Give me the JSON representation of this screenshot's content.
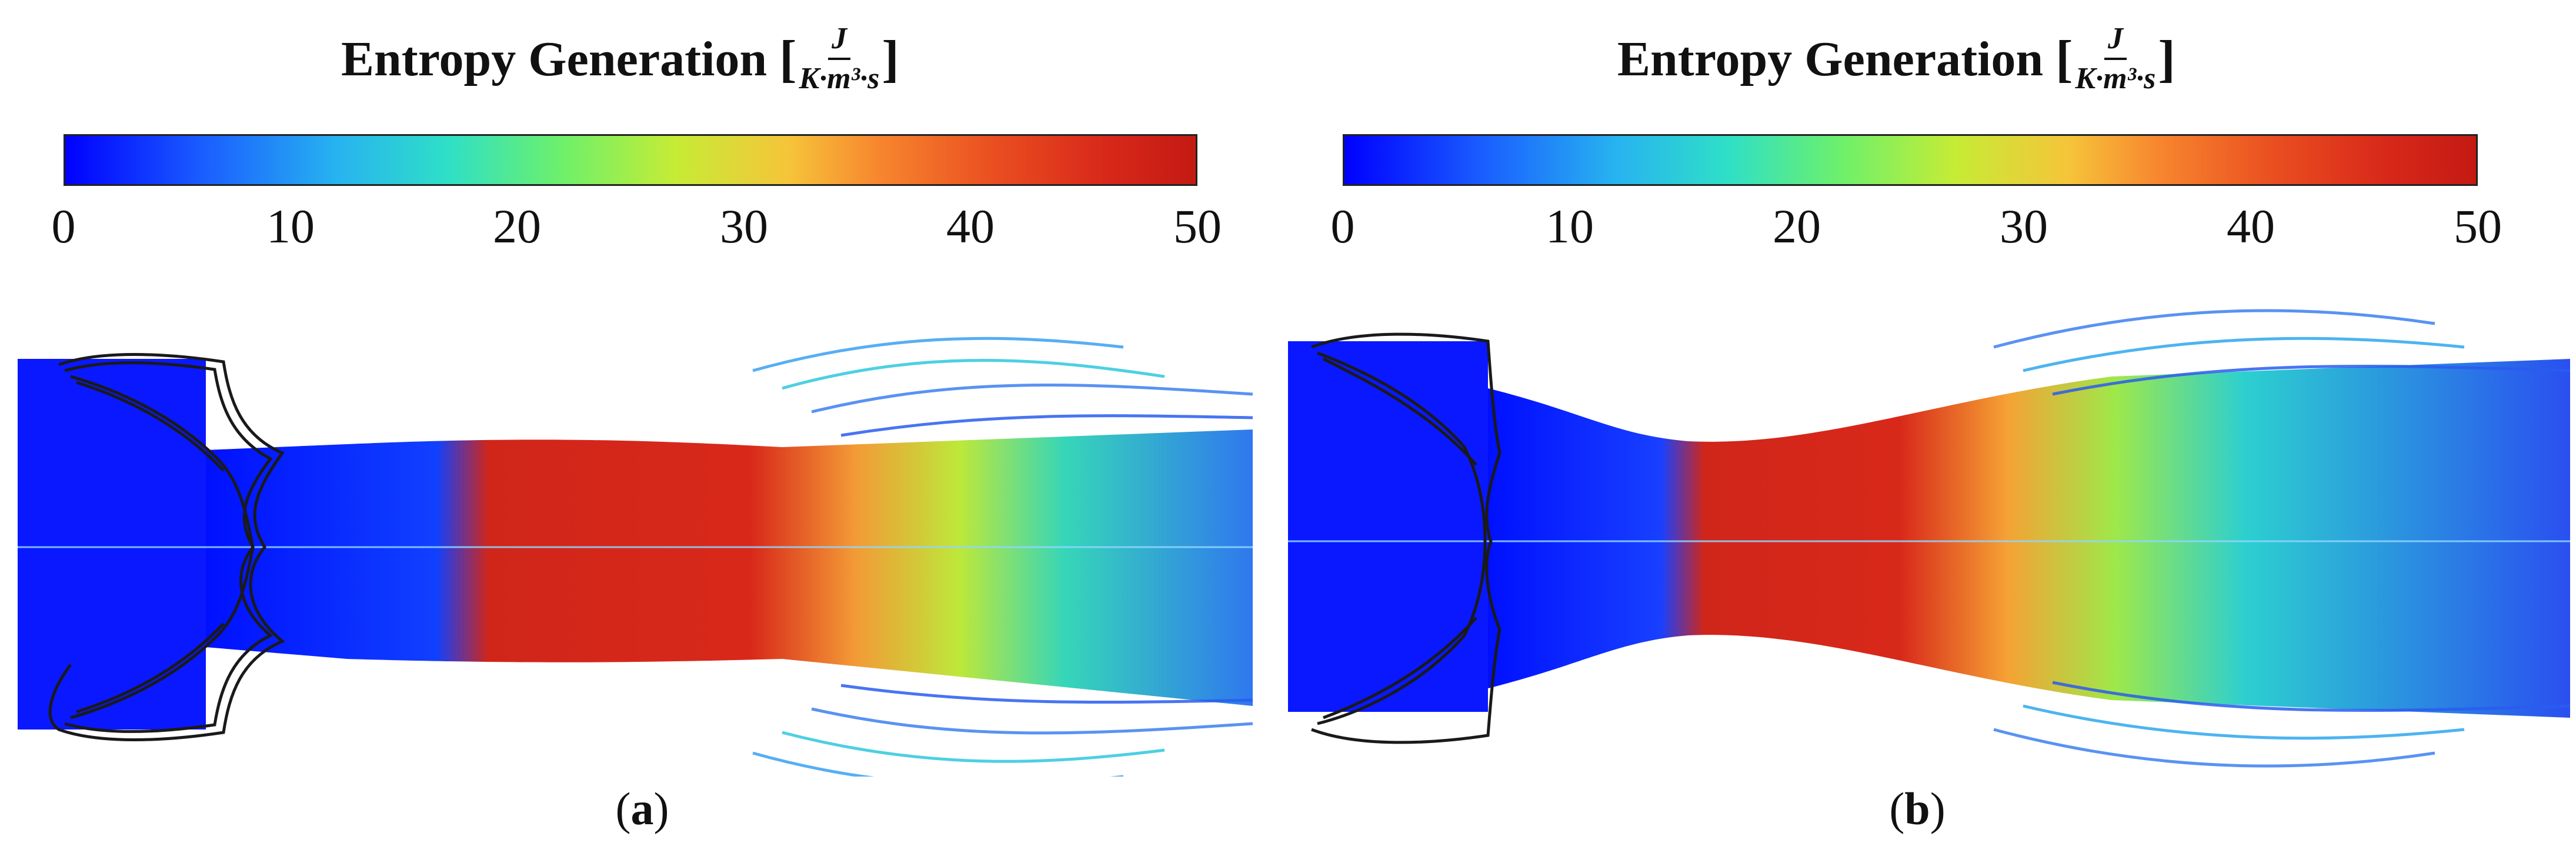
{
  "panels": [
    {
      "title": "Entropy Generation",
      "unit_numerator": "J",
      "unit_denominator": "K·m³·s",
      "colorbar_ticks": [
        "0",
        "10",
        "20",
        "30",
        "40",
        "50"
      ],
      "caption_letter": "a"
    },
    {
      "title": "Entropy Generation",
      "unit_numerator": "J",
      "unit_denominator": "K·m³·s",
      "colorbar_ticks": [
        "0",
        "10",
        "20",
        "30",
        "40",
        "50"
      ],
      "caption_letter": "b"
    }
  ],
  "colors": {
    "low": "#0000ff",
    "mid": "#6ef06a",
    "high": "#c41a12",
    "outline": "#222222"
  }
}
